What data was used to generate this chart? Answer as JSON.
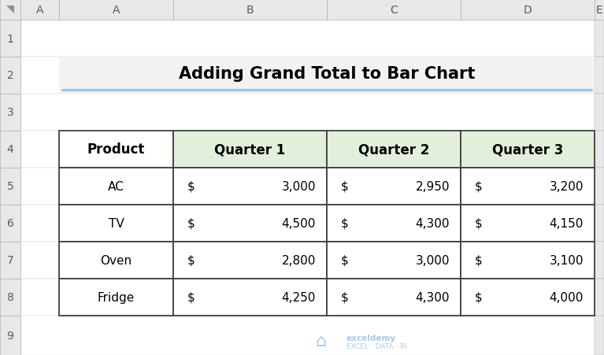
{
  "title": "Adding Grand Total to Bar Chart",
  "col_headers": [
    "Product",
    "Quarter 1",
    "Quarter 2",
    "Quarter 3"
  ],
  "rows": [
    [
      "AC",
      "3,000",
      "2,950",
      "3,200"
    ],
    [
      "TV",
      "4,500",
      "4,300",
      "4,150"
    ],
    [
      "Oven",
      "2,800",
      "3,000",
      "3,100"
    ],
    [
      "Fridge",
      "4,250",
      "4,300",
      "4,000"
    ]
  ],
  "bg_color": "#ffffff",
  "header_bg": "#e2efda",
  "excel_header_bg": "#e8e8e8",
  "excel_header_fg": "#595959",
  "title_bg": "#f2f2f2",
  "cell_bg": "#ffffff",
  "table_border": "#404040",
  "grid_line": "#d0d0d0",
  "accent_line": "#9dc3e6",
  "watermark_color": "#9dc3e6",
  "col_labels": [
    "A",
    "B",
    "C",
    "D",
    "E"
  ],
  "row_labels": [
    "1",
    "2",
    "3",
    "4",
    "5",
    "6",
    "7",
    "8",
    "9"
  ],
  "figw": 7.67,
  "figh": 4.52,
  "dpi": 100
}
